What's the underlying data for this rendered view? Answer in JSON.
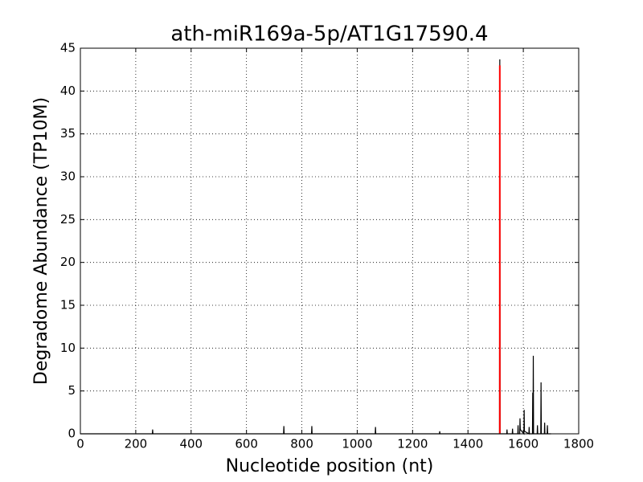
{
  "chart_data": {
    "type": "line",
    "title": "ath-miR169a-5p/AT1G17590.4",
    "x_label": "Nucleotide position (nt)",
    "y_label": "Degradome Abundance (TP10M)",
    "xlim": [
      0,
      1800
    ],
    "xticks": [
      0,
      200,
      400,
      600,
      800,
      1000,
      1200,
      1400,
      1600,
      1800
    ],
    "ylim": [
      0,
      45
    ],
    "yticks": [
      0,
      5,
      10,
      15,
      20,
      25,
      30,
      35,
      40,
      45
    ],
    "grid": true,
    "series": [
      {
        "color": "#000000",
        "x": [
          0,
          260,
          261,
          262,
          734,
          735,
          736,
          835,
          836,
          837,
          1065,
          1066,
          1067,
          1297,
          1298,
          1299,
          1514,
          1515,
          1516,
          1540,
          1541,
          1542,
          1560,
          1561,
          1562,
          1580,
          1581,
          1582,
          1587,
          1588,
          1589,
          1602,
          1603,
          1604,
          1620,
          1621,
          1622,
          1633,
          1634,
          1635,
          1636,
          1637,
          1650,
          1651,
          1652,
          1663,
          1664,
          1665,
          1676,
          1677,
          1678,
          1686,
          1687,
          1688,
          1700
        ],
        "values": [
          0,
          0,
          0.5,
          0,
          0,
          0.9,
          0,
          0,
          0.9,
          0,
          0,
          0.8,
          0,
          0,
          0.3,
          0,
          0,
          43.7,
          0,
          0,
          0.5,
          0,
          0,
          0.6,
          0,
          0,
          1.0,
          0,
          0,
          1.8,
          0.5,
          0,
          2.8,
          0.3,
          0,
          0.8,
          0,
          0,
          4.8,
          0,
          9.1,
          0,
          0,
          1.0,
          0,
          0,
          6.0,
          0,
          0,
          1.3,
          0,
          0,
          1.0,
          0,
          0
        ]
      },
      {
        "color": "#ff0000",
        "x": [
          1515,
          1515
        ],
        "values": [
          0,
          43
        ]
      }
    ]
  }
}
